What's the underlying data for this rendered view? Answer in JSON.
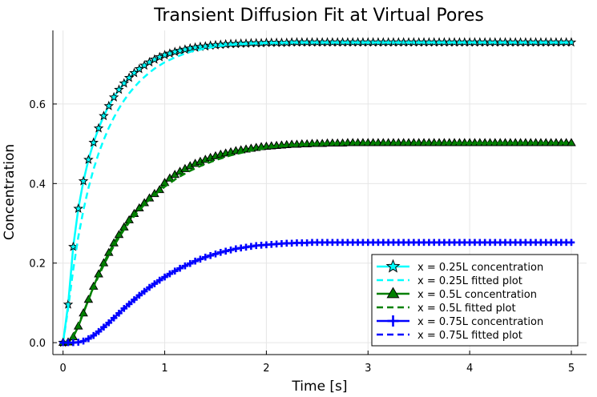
{
  "chart_data": {
    "type": "line",
    "title": "Transient Diffusion Fit at Virtual Pores",
    "xlabel": "Time [s]",
    "ylabel": "Concentration",
    "xlim": [
      -0.1,
      5.15
    ],
    "ylim": [
      -0.03,
      0.785
    ],
    "xticks": [
      0,
      1,
      2,
      3,
      4,
      5
    ],
    "yticks": [
      0.0,
      0.2,
      0.4,
      0.6
    ],
    "xtick_labels": [
      "0",
      "1",
      "2",
      "3",
      "4",
      "5"
    ],
    "ytick_labels": [
      "0.0",
      "0.2",
      "0.4",
      "0.6"
    ],
    "grid": true,
    "legend_position": "bottom-right",
    "x": [
      0.0,
      0.05,
      0.1,
      0.15,
      0.2,
      0.25,
      0.3,
      0.35,
      0.4,
      0.45,
      0.5,
      0.55,
      0.6,
      0.65,
      0.7,
      0.75,
      0.8,
      0.85,
      0.9,
      0.95,
      1.0,
      1.05,
      1.1,
      1.15,
      1.2,
      1.25,
      1.3,
      1.35,
      1.4,
      1.45,
      1.5,
      1.55,
      1.6,
      1.65,
      1.7,
      1.75,
      1.8,
      1.85,
      1.9,
      1.95,
      2.0,
      2.05,
      2.1,
      2.15,
      2.2,
      2.25,
      2.3,
      2.35,
      2.4,
      2.45,
      2.5,
      2.55,
      2.6,
      2.65,
      2.7,
      2.75,
      2.8,
      2.85,
      2.9,
      2.95,
      3.0,
      3.05,
      3.1,
      3.15,
      3.2,
      3.25,
      3.3,
      3.35,
      3.4,
      3.45,
      3.5,
      3.55,
      3.6,
      3.65,
      3.7,
      3.75,
      3.8,
      3.85,
      3.9,
      3.95,
      4.0,
      4.05,
      4.1,
      4.15,
      4.2,
      4.25,
      4.3,
      4.35,
      4.4,
      4.45,
      4.5,
      4.55,
      4.6,
      4.65,
      4.7,
      4.75,
      4.8,
      4.85,
      4.9,
      4.95,
      5.0
    ],
    "series": [
      {
        "name": "x = 0.25L concentration",
        "color": "#00ffff",
        "marker": "star",
        "line": "solid",
        "values": [
          0.0,
          0.096,
          0.241,
          0.337,
          0.406,
          0.46,
          0.503,
          0.539,
          0.57,
          0.595,
          0.617,
          0.636,
          0.652,
          0.666,
          0.678,
          0.688,
          0.697,
          0.705,
          0.712,
          0.718,
          0.723,
          0.727,
          0.731,
          0.734,
          0.737,
          0.74,
          0.742,
          0.744,
          0.745,
          0.747,
          0.748,
          0.749,
          0.75,
          0.751,
          0.751,
          0.752,
          0.752,
          0.753,
          0.753,
          0.753,
          0.754,
          0.754,
          0.754,
          0.754,
          0.754,
          0.755,
          0.755,
          0.755,
          0.755,
          0.755,
          0.755,
          0.755,
          0.755,
          0.755,
          0.755,
          0.755,
          0.755,
          0.755,
          0.755,
          0.755,
          0.755,
          0.755,
          0.755,
          0.755,
          0.755,
          0.755,
          0.755,
          0.755,
          0.755,
          0.755,
          0.755,
          0.755,
          0.755,
          0.755,
          0.755,
          0.755,
          0.755,
          0.755,
          0.755,
          0.755,
          0.755,
          0.755,
          0.755,
          0.755,
          0.755,
          0.755,
          0.755,
          0.755,
          0.755,
          0.755,
          0.755,
          0.755,
          0.755,
          0.755,
          0.755,
          0.755,
          0.755,
          0.755,
          0.755,
          0.755,
          0.755
        ]
      },
      {
        "name": "x = 0.25L fitted plot",
        "color": "#00ffff",
        "marker": "none",
        "line": "dashed",
        "values": [
          0.0,
          0.086,
          0.184,
          0.266,
          0.333,
          0.389,
          0.436,
          0.476,
          0.51,
          0.54,
          0.566,
          0.589,
          0.609,
          0.627,
          0.642,
          0.656,
          0.668,
          0.679,
          0.689,
          0.697,
          0.705,
          0.711,
          0.717,
          0.722,
          0.727,
          0.731,
          0.734,
          0.737,
          0.74,
          0.742,
          0.744,
          0.746,
          0.747,
          0.749,
          0.75,
          0.751,
          0.751,
          0.752,
          0.753,
          0.753,
          0.754,
          0.754,
          0.754,
          0.754,
          0.755,
          0.755,
          0.755,
          0.755,
          0.755,
          0.755,
          0.755,
          0.755,
          0.755,
          0.755,
          0.755,
          0.755,
          0.755,
          0.755,
          0.755,
          0.755,
          0.755,
          0.755,
          0.755,
          0.755,
          0.755,
          0.755,
          0.755,
          0.755,
          0.755,
          0.755,
          0.755,
          0.755,
          0.755,
          0.755,
          0.755,
          0.755,
          0.755,
          0.755,
          0.755,
          0.755,
          0.755,
          0.755,
          0.755,
          0.755,
          0.755,
          0.755,
          0.755,
          0.755,
          0.755,
          0.755,
          0.755,
          0.755,
          0.755,
          0.755,
          0.755,
          0.755,
          0.755,
          0.755,
          0.755,
          0.755,
          0.755
        ]
      },
      {
        "name": "x = 0.5L concentration",
        "color": "#008000",
        "marker": "triangle",
        "line": "solid",
        "values": [
          0.0,
          0.001,
          0.014,
          0.041,
          0.074,
          0.108,
          0.141,
          0.172,
          0.2,
          0.226,
          0.25,
          0.271,
          0.29,
          0.308,
          0.324,
          0.338,
          0.351,
          0.363,
          0.374,
          0.384,
          0.402,
          0.413,
          0.422,
          0.43,
          0.437,
          0.444,
          0.45,
          0.455,
          0.46,
          0.465,
          0.469,
          0.473,
          0.476,
          0.479,
          0.482,
          0.484,
          0.486,
          0.488,
          0.49,
          0.492,
          0.493,
          0.494,
          0.495,
          0.496,
          0.497,
          0.498,
          0.498,
          0.499,
          0.499,
          0.5,
          0.5,
          0.5,
          0.501,
          0.501,
          0.501,
          0.501,
          0.502,
          0.502,
          0.502,
          0.502,
          0.502,
          0.502,
          0.502,
          0.502,
          0.502,
          0.502,
          0.502,
          0.502,
          0.502,
          0.502,
          0.502,
          0.502,
          0.502,
          0.502,
          0.502,
          0.502,
          0.502,
          0.502,
          0.502,
          0.502,
          0.502,
          0.502,
          0.502,
          0.502,
          0.502,
          0.502,
          0.502,
          0.502,
          0.502,
          0.502,
          0.502,
          0.502,
          0.502,
          0.502,
          0.502,
          0.502,
          0.502,
          0.502,
          0.502,
          0.502,
          0.502
        ]
      },
      {
        "name": "x = 0.5L fitted plot",
        "color": "#008000",
        "marker": "none",
        "line": "dashed",
        "values": [
          0.0,
          0.003,
          0.019,
          0.045,
          0.076,
          0.108,
          0.139,
          0.168,
          0.195,
          0.22,
          0.243,
          0.264,
          0.284,
          0.302,
          0.318,
          0.333,
          0.347,
          0.36,
          0.371,
          0.382,
          0.392,
          0.401,
          0.41,
          0.418,
          0.425,
          0.432,
          0.438,
          0.444,
          0.449,
          0.454,
          0.459,
          0.463,
          0.467,
          0.471,
          0.474,
          0.477,
          0.48,
          0.483,
          0.485,
          0.487,
          0.489,
          0.491,
          0.493,
          0.494,
          0.495,
          0.496,
          0.497,
          0.498,
          0.499,
          0.499,
          0.5,
          0.5,
          0.501,
          0.501,
          0.501,
          0.501,
          0.502,
          0.502,
          0.502,
          0.502,
          0.502,
          0.502,
          0.502,
          0.502,
          0.502,
          0.502,
          0.502,
          0.502,
          0.502,
          0.502,
          0.502,
          0.502,
          0.502,
          0.502,
          0.502,
          0.502,
          0.502,
          0.502,
          0.502,
          0.502,
          0.502,
          0.502,
          0.502,
          0.502,
          0.502,
          0.502,
          0.502,
          0.502,
          0.502,
          0.502,
          0.502,
          0.502,
          0.502,
          0.502,
          0.502,
          0.502,
          0.502,
          0.502,
          0.502,
          0.502,
          0.502
        ]
      },
      {
        "name": "x = 0.75L concentration",
        "color": "#0000ff",
        "marker": "cross",
        "line": "solid",
        "values": [
          0.0,
          0.0,
          0.0,
          0.001,
          0.004,
          0.01,
          0.018,
          0.028,
          0.039,
          0.05,
          0.062,
          0.074,
          0.086,
          0.097,
          0.108,
          0.119,
          0.129,
          0.139,
          0.148,
          0.157,
          0.165,
          0.173,
          0.18,
          0.187,
          0.193,
          0.199,
          0.205,
          0.21,
          0.215,
          0.219,
          0.223,
          0.227,
          0.23,
          0.233,
          0.236,
          0.238,
          0.24,
          0.242,
          0.244,
          0.245,
          0.246,
          0.247,
          0.248,
          0.249,
          0.25,
          0.25,
          0.251,
          0.251,
          0.251,
          0.252,
          0.252,
          0.252,
          0.252,
          0.252,
          0.252,
          0.252,
          0.252,
          0.252,
          0.252,
          0.252,
          0.252,
          0.252,
          0.252,
          0.252,
          0.252,
          0.252,
          0.252,
          0.252,
          0.252,
          0.252,
          0.252,
          0.252,
          0.252,
          0.252,
          0.252,
          0.252,
          0.252,
          0.252,
          0.252,
          0.252,
          0.252,
          0.252,
          0.252,
          0.252,
          0.252,
          0.252,
          0.252,
          0.252,
          0.252,
          0.252,
          0.252,
          0.252,
          0.252,
          0.252,
          0.252,
          0.252,
          0.252,
          0.252,
          0.252,
          0.252,
          0.252
        ]
      },
      {
        "name": "x = 0.75L fitted plot",
        "color": "#0000ff",
        "marker": "none",
        "line": "dashed",
        "values": [
          0.0,
          0.0,
          0.0,
          0.001,
          0.004,
          0.01,
          0.018,
          0.028,
          0.039,
          0.05,
          0.062,
          0.074,
          0.086,
          0.097,
          0.108,
          0.119,
          0.129,
          0.139,
          0.148,
          0.157,
          0.165,
          0.173,
          0.18,
          0.187,
          0.193,
          0.199,
          0.205,
          0.21,
          0.215,
          0.219,
          0.223,
          0.227,
          0.23,
          0.233,
          0.236,
          0.238,
          0.24,
          0.242,
          0.244,
          0.245,
          0.246,
          0.247,
          0.248,
          0.249,
          0.25,
          0.25,
          0.251,
          0.251,
          0.251,
          0.252,
          0.252,
          0.252,
          0.252,
          0.252,
          0.252,
          0.252,
          0.252,
          0.252,
          0.252,
          0.252,
          0.252,
          0.252,
          0.252,
          0.252,
          0.252,
          0.252,
          0.252,
          0.252,
          0.252,
          0.252,
          0.252,
          0.252,
          0.252,
          0.252,
          0.252,
          0.252,
          0.252,
          0.252,
          0.252,
          0.252,
          0.252,
          0.252,
          0.252,
          0.252,
          0.252,
          0.252,
          0.252,
          0.252,
          0.252,
          0.252,
          0.252,
          0.252,
          0.252,
          0.252,
          0.252,
          0.252,
          0.252,
          0.252,
          0.252,
          0.252,
          0.252
        ]
      }
    ]
  }
}
